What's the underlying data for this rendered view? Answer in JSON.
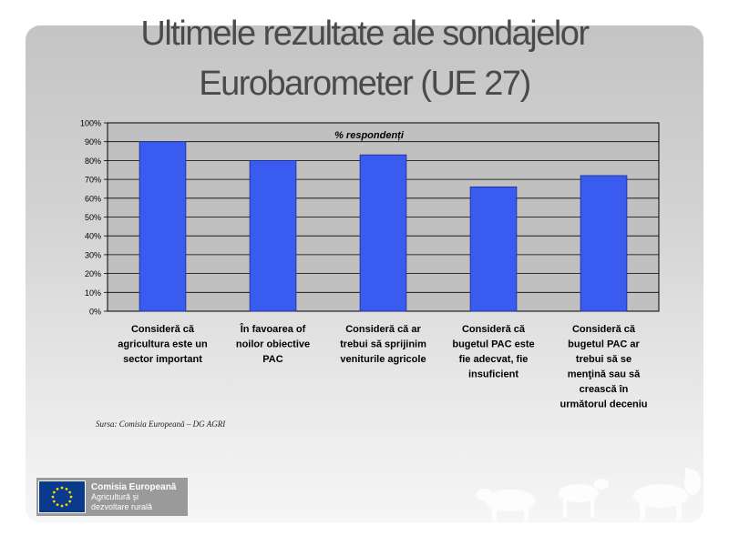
{
  "title": {
    "line1": "Ultimele rezultate ale sondajelor",
    "line2": "Eurobarometer (UE 27)"
  },
  "source": "Sursa: Comisia Europeană – DG AGRI",
  "footer": {
    "org": "Comisia Europeană",
    "dept_line1": "Agricultură și",
    "dept_line2": "dezvoltare rurală",
    "icon": "eu-flag-icon"
  },
  "colors": {
    "bar": "#3a5bf0",
    "bar_stroke": "#1b2a8a",
    "grid": "#000000"
  },
  "chart_data": {
    "type": "bar",
    "title": "% respondenți",
    "categories": [
      [
        "Consideră că",
        "agricultura este un",
        "sector important"
      ],
      [
        "În favoarea of",
        "noilor obiective",
        "PAC"
      ],
      [
        "Consideră că ar",
        "trebui să sprijinim",
        "veniturile agricole"
      ],
      [
        "Consideră că",
        "bugetul PAC este",
        "fie adecvat, fie",
        "insuficient"
      ],
      [
        "Consideră că",
        "bugetul PAC ar",
        "trebui să se",
        "menţină sau să",
        "crească în",
        "următorul deceniu"
      ]
    ],
    "values": [
      90,
      80,
      83,
      66,
      72
    ],
    "ylim": [
      0,
      100
    ],
    "yticks": [
      "0%",
      "10%",
      "20%",
      "30%",
      "40%",
      "50%",
      "60%",
      "70%",
      "80%",
      "90%",
      "100%"
    ],
    "grid": true,
    "legend": "none"
  }
}
